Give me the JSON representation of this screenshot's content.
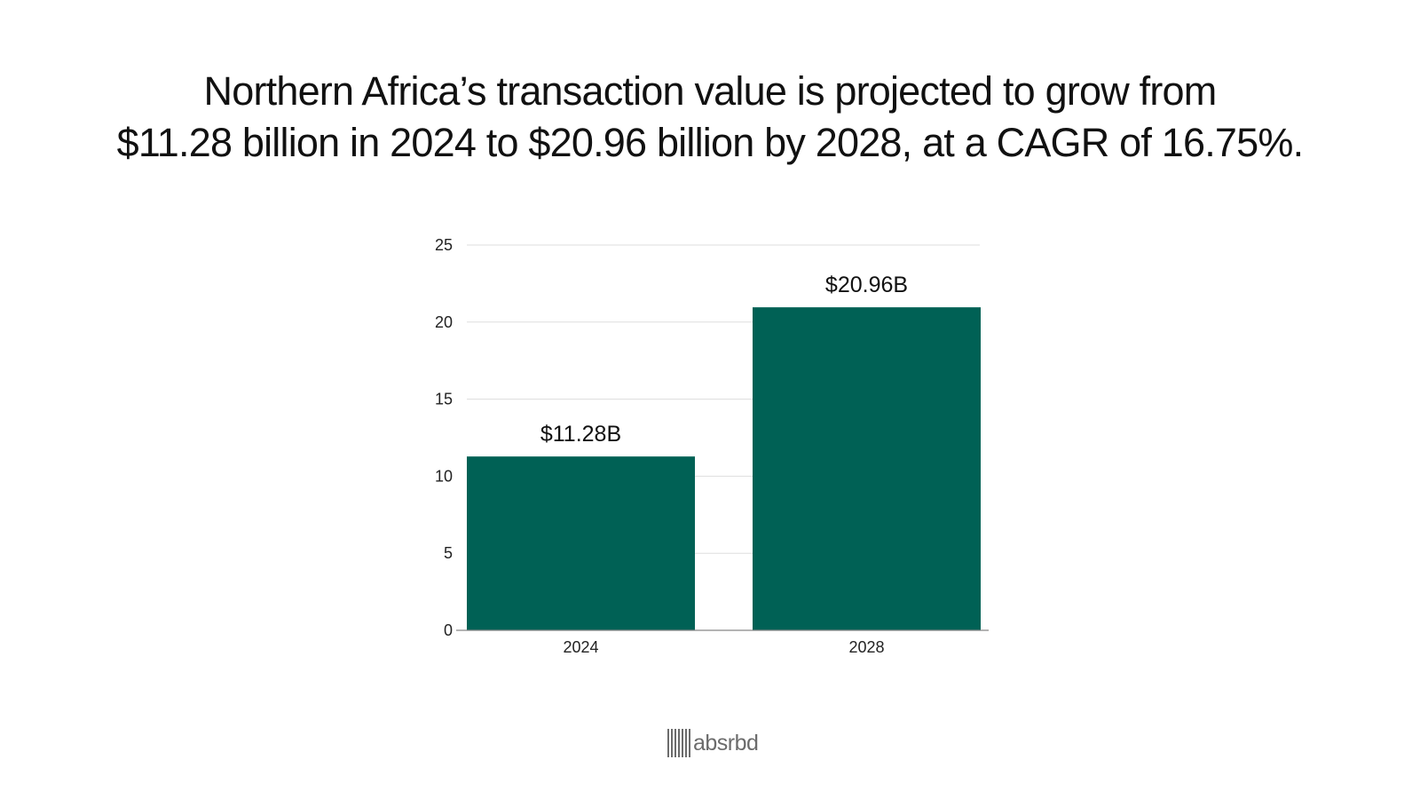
{
  "title": {
    "line1": "Northern Africa’s transaction value is projected to grow from",
    "line2": "$11.28 billion in 2024 to $20.96 billion by 2028, at a CAGR of 16.75%."
  },
  "colors": {
    "bar": "#006155",
    "grid": "#dddddd",
    "axis": "#888888",
    "text": "#111111",
    "brand": "#6b6b6b"
  },
  "chart_data": {
    "type": "bar",
    "categories": [
      "2024",
      "2028"
    ],
    "values": [
      11.28,
      20.96
    ],
    "data_labels": [
      "$11.28B",
      "$20.96B"
    ],
    "title": "Northern Africa’s transaction value is projected to grow from $11.28 billion in 2024 to $20.96 billion by 2028, at a CAGR of 16.75%.",
    "xlabel": "",
    "ylabel": "",
    "ylim": [
      0,
      25
    ],
    "yticks": [
      0,
      5,
      10,
      15,
      20,
      25
    ],
    "grid": true,
    "legend": "none"
  },
  "brand": {
    "name": "absrbd",
    "logo_icon": "barcode-icon"
  }
}
